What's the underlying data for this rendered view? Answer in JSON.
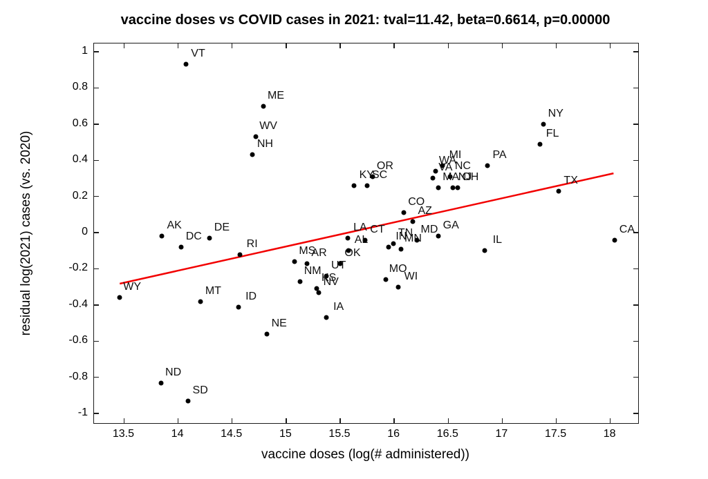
{
  "chart_data": {
    "type": "scatter",
    "title": "vaccine doses vs COVID cases in 2021: tval=11.42, beta=0.6614, p=0.00000",
    "xlabel": "vaccine doses (log(# administered))",
    "ylabel": "residual log(2021) cases (vs. 2020)",
    "stats": {
      "tval": "11.42",
      "beta": "0.6614",
      "p": "0.00000"
    },
    "xlim": [
      13.222,
      18.258
    ],
    "ylim": [
      -1.053,
      1.046
    ],
    "grid": false,
    "xticks": [
      13.5,
      14,
      14.5,
      15,
      15.5,
      16,
      16.5,
      17,
      17.5,
      18
    ],
    "xtick_labels": [
      "13.5",
      "14",
      "14.5",
      "15",
      "15.5",
      "16",
      "16.5",
      "17",
      "17.5",
      "18"
    ],
    "yticks": [
      1,
      0.8,
      0.6,
      0.4,
      0.2,
      0,
      -0.2,
      -0.4,
      -0.6,
      -0.8,
      -1
    ],
    "ytick_labels": [
      "1",
      "0.8",
      "0.6",
      "0.4",
      "0.2",
      "0",
      "-0.2",
      "-0.4",
      "-0.6",
      "-0.8",
      "-1"
    ],
    "marker_color": "#000000",
    "trend_line": {
      "x1": 13.46,
      "y1": -0.282,
      "x2": 18.03,
      "y2": 0.328,
      "color": "#f20000"
    },
    "points": [
      {
        "label": "VT",
        "x": 14.07,
        "y": 0.93
      },
      {
        "label": "ME",
        "x": 14.79,
        "y": 0.7
      },
      {
        "label": "WV",
        "x": 14.72,
        "y": 0.53
      },
      {
        "label": "NH",
        "x": 14.69,
        "y": 0.43
      },
      {
        "label": "NY",
        "x": 17.38,
        "y": 0.6
      },
      {
        "label": "FL",
        "x": 17.35,
        "y": 0.49
      },
      {
        "label": "PA",
        "x": 16.86,
        "y": 0.37
      },
      {
        "label": "MI",
        "x": 16.45,
        "y": 0.37
      },
      {
        "label": "WA",
        "x": 16.38,
        "y": 0.34
      },
      {
        "label": "NC",
        "x": 16.52,
        "y": 0.31
      },
      {
        "label": "VA",
        "x": 16.36,
        "y": 0.3
      },
      {
        "label": "OR",
        "x": 15.8,
        "y": 0.31
      },
      {
        "label": "KY",
        "x": 15.63,
        "y": 0.26
      },
      {
        "label": "SC",
        "x": 15.75,
        "y": 0.26
      },
      {
        "label": "MA",
        "x": 16.41,
        "y": 0.25
      },
      {
        "label": "NJ",
        "x": 16.54,
        "y": 0.25
      },
      {
        "label": "OH",
        "x": 16.59,
        "y": 0.25
      },
      {
        "label": "TX",
        "x": 17.52,
        "y": 0.23
      },
      {
        "label": "CO",
        "x": 16.09,
        "y": 0.11
      },
      {
        "label": "AZ",
        "x": 16.17,
        "y": 0.06
      },
      {
        "label": "AK",
        "x": 13.85,
        "y": -0.02
      },
      {
        "label": "DE",
        "x": 14.29,
        "y": -0.03
      },
      {
        "label": "LA",
        "x": 15.57,
        "y": -0.03
      },
      {
        "label": "CT",
        "x": 15.73,
        "y": -0.04
      },
      {
        "label": "MD",
        "x": 16.21,
        "y": -0.04
      },
      {
        "label": "GA",
        "x": 16.41,
        "y": -0.02
      },
      {
        "label": "CA",
        "x": 18.04,
        "y": -0.04
      },
      {
        "label": "DC",
        "x": 14.03,
        "y": -0.08
      },
      {
        "label": "TN",
        "x": 15.99,
        "y": -0.06
      },
      {
        "label": "IN",
        "x": 15.95,
        "y": -0.08
      },
      {
        "label": "MN",
        "x": 16.06,
        "y": -0.09
      },
      {
        "label": "AL",
        "x": 15.58,
        "y": -0.1
      },
      {
        "label": "IL",
        "x": 16.84,
        "y": -0.1
      },
      {
        "label": "RI",
        "x": 14.57,
        "y": -0.12
      },
      {
        "label": "MS",
        "x": 15.08,
        "y": -0.16
      },
      {
        "label": "AR",
        "x": 15.19,
        "y": -0.17
      },
      {
        "label": "OK",
        "x": 15.5,
        "y": -0.17
      },
      {
        "label": "UT",
        "x": 15.37,
        "y": -0.24
      },
      {
        "label": "MO",
        "x": 15.92,
        "y": -0.26
      },
      {
        "label": "NM",
        "x": 15.13,
        "y": -0.27
      },
      {
        "label": "WI",
        "x": 16.04,
        "y": -0.3
      },
      {
        "label": "KS",
        "x": 15.28,
        "y": -0.31
      },
      {
        "label": "NV",
        "x": 15.3,
        "y": -0.33
      },
      {
        "label": "WY",
        "x": 13.46,
        "y": -0.36
      },
      {
        "label": "MT",
        "x": 14.21,
        "y": -0.38
      },
      {
        "label": "ID",
        "x": 14.56,
        "y": -0.41
      },
      {
        "label": "IA",
        "x": 15.37,
        "y": -0.47
      },
      {
        "label": "NE",
        "x": 14.82,
        "y": -0.56
      },
      {
        "label": "ND",
        "x": 13.84,
        "y": -0.83
      },
      {
        "label": "SD",
        "x": 14.09,
        "y": -0.93
      }
    ]
  }
}
